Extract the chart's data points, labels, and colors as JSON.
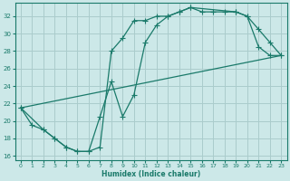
{
  "bg_color": "#cce8e8",
  "grid_color": "#aacccc",
  "line_color": "#1a7a6a",
  "xlabel": "Humidex (Indice chaleur)",
  "xlim": [
    -0.5,
    23.5
  ],
  "ylim": [
    15.5,
    33.5
  ],
  "yticks": [
    16,
    18,
    20,
    22,
    24,
    26,
    28,
    30,
    32
  ],
  "xticks": [
    0,
    1,
    2,
    3,
    4,
    5,
    6,
    7,
    8,
    9,
    10,
    11,
    12,
    13,
    14,
    15,
    16,
    17,
    18,
    19,
    20,
    21,
    22,
    23
  ],
  "line1_x": [
    0,
    1,
    2,
    3,
    4,
    5,
    6,
    7,
    8,
    9,
    10,
    11,
    12,
    13,
    14,
    15,
    16,
    17,
    18,
    19,
    20,
    21,
    22,
    23
  ],
  "line1_y": [
    21.5,
    19.5,
    19.0,
    18.0,
    17.0,
    16.5,
    16.5,
    17.0,
    28.0,
    29.5,
    31.5,
    31.5,
    32.0,
    32.0,
    32.5,
    33.0,
    32.5,
    32.5,
    32.5,
    32.5,
    32.0,
    30.5,
    29.0,
    27.5
  ],
  "line2_x": [
    0,
    2,
    3,
    4,
    5,
    6,
    7,
    8,
    9,
    10,
    11,
    12,
    13,
    14,
    15,
    19,
    20,
    21,
    22,
    23
  ],
  "line2_y": [
    21.5,
    19.0,
    18.0,
    17.0,
    16.5,
    16.5,
    20.5,
    24.5,
    20.5,
    23.0,
    29.0,
    31.0,
    32.0,
    32.5,
    33.0,
    32.5,
    32.0,
    28.5,
    27.5,
    27.5
  ],
  "line3_x": [
    0,
    23
  ],
  "line3_y": [
    21.5,
    27.5
  ]
}
